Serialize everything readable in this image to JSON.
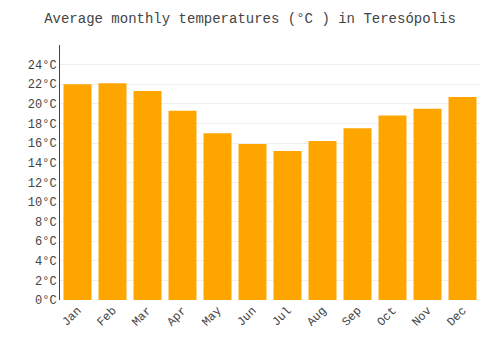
{
  "chart_data": {
    "type": "bar",
    "title": "Average monthly temperatures (°C ) in Teresópolis",
    "categories": [
      "Jan",
      "Feb",
      "Mar",
      "Apr",
      "May",
      "Jun",
      "Jul",
      "Aug",
      "Sep",
      "Oct",
      "Nov",
      "Dec"
    ],
    "values": [
      22.0,
      22.1,
      21.3,
      19.3,
      17.0,
      15.9,
      15.2,
      16.2,
      17.5,
      18.8,
      19.5,
      20.7
    ],
    "color": "#FFA500",
    "ylim": [
      0,
      26
    ],
    "yticks": [
      {
        "value": 0,
        "label": "0°C"
      },
      {
        "value": 2,
        "label": "2°C"
      },
      {
        "value": 4,
        "label": "4°C"
      },
      {
        "value": 6,
        "label": "6°C"
      },
      {
        "value": 8,
        "label": "8°C"
      },
      {
        "value": 10,
        "label": "10°C"
      },
      {
        "value": 12,
        "label": "12°C"
      },
      {
        "value": 14,
        "label": "14°C"
      },
      {
        "value": 16,
        "label": "16°C"
      },
      {
        "value": 18,
        "label": "18°C"
      },
      {
        "value": 20,
        "label": "20°C"
      },
      {
        "value": 22,
        "label": "22°C"
      },
      {
        "value": 24,
        "label": "24°C"
      }
    ],
    "grid": true
  }
}
